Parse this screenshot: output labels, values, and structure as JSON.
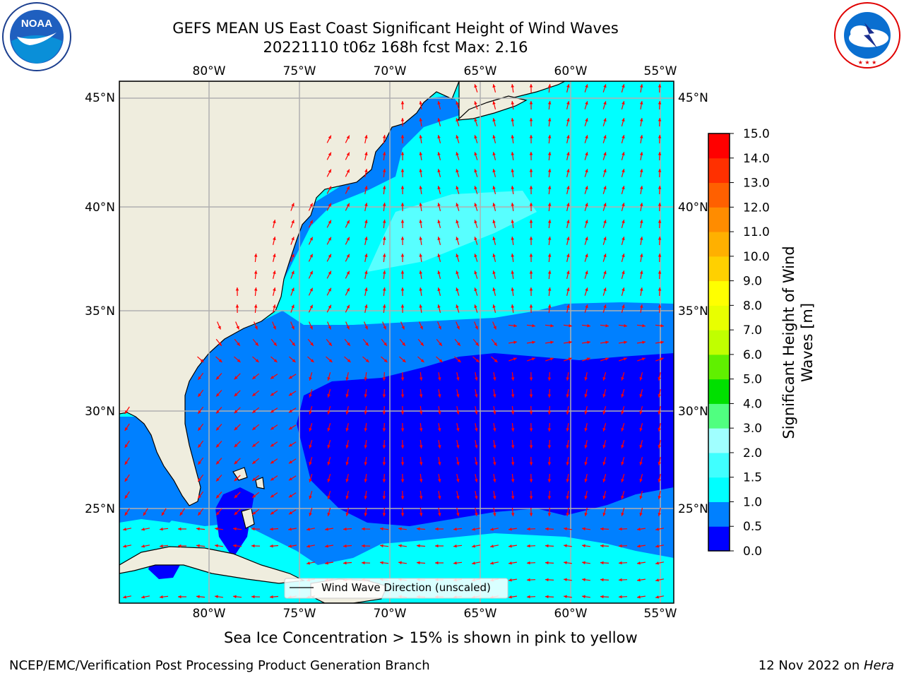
{
  "title": {
    "line1": "GEFS MEAN US East Coast Significant Height of Wind Waves",
    "line2": "20221110 t06z 168h fcst   Max: 2.16"
  },
  "logos": {
    "left": {
      "icon": "noaa-logo",
      "text": "NOAA",
      "ring_text": "NATIONAL OCEANIC AND ATMOSPHERIC ADMINISTRATION · U.S. DEPARTMENT OF COMMERCE"
    },
    "right": {
      "icon": "nws-logo",
      "ring_text": "NATIONAL WEATHER SERVICE"
    }
  },
  "map": {
    "lon_ticks_top": [
      "80°W",
      "75°W",
      "70°W",
      "65°W",
      "60°W",
      "55°W"
    ],
    "lon_ticks_bottom": [
      "80°W",
      "75°W",
      "70°W",
      "65°W",
      "60°W",
      "55°W"
    ],
    "lat_ticks_left": [
      "45°N",
      "40°N",
      "35°N",
      "30°N",
      "25°N"
    ],
    "lat_ticks_right": [
      "45°N",
      "40°N",
      "35°N",
      "30°N",
      "25°N"
    ],
    "legend_label": "Wind Wave Direction (unscaled)",
    "land_color": "#efedde",
    "arrow_color": "#ff0000",
    "grid_color": "#b0b0b0"
  },
  "colorbar": {
    "label_line1": "Significant Height of Wind",
    "label_line2": "Waves [m]",
    "ticks": [
      "0.0",
      "0.5",
      "1.0",
      "1.5",
      "2.0",
      "3.0",
      "4.0",
      "5.0",
      "6.0",
      "7.0",
      "8.0",
      "9.0",
      "10.0",
      "11.0",
      "12.0",
      "13.0",
      "14.0",
      "15.0"
    ],
    "colors": [
      "#0000ff",
      "#0080ff",
      "#00ffff",
      "#40ffff",
      "#a0ffff",
      "#50ff80",
      "#00e000",
      "#60f000",
      "#c0ff00",
      "#e8ff00",
      "#ffff00",
      "#ffd000",
      "#ffb000",
      "#ff8c00",
      "#ff6000",
      "#ff3000",
      "#ff0000"
    ]
  },
  "caption": "Sea Ice Concentration > 15% is shown in pink to yellow",
  "footer": {
    "left": "NCEP/EMC/Verification Post Processing Product Generation Branch",
    "right_date": "12 Nov 2022 on ",
    "right_machine": "Hera"
  }
}
